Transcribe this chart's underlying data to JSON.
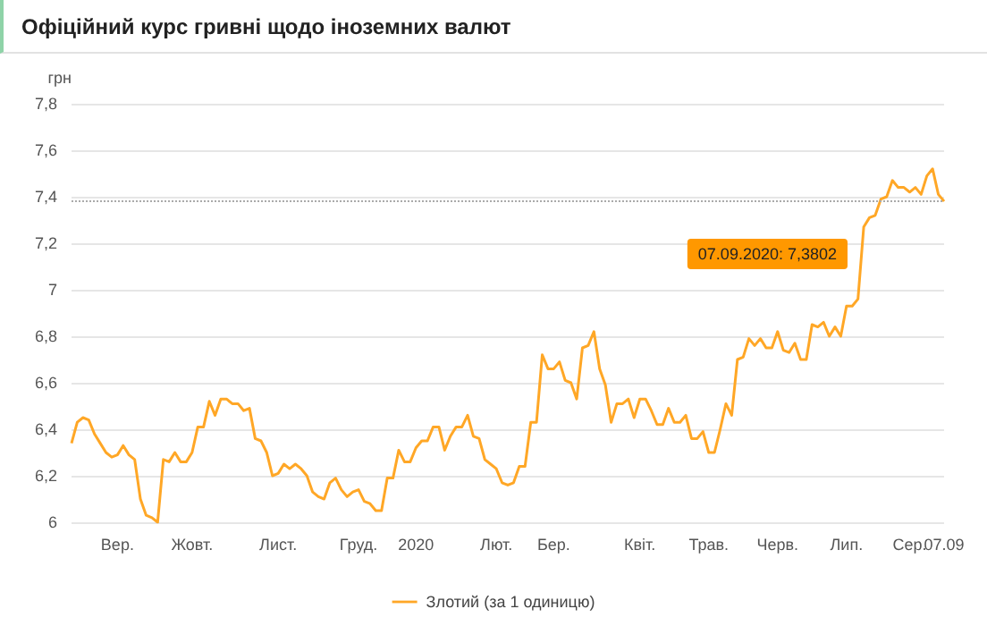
{
  "chart_data": {
    "type": "line",
    "title": "Офіційний курс гривні щодо іноземних валют",
    "ylabel": "грн",
    "categories": [
      null,
      null,
      null,
      null,
      null,
      null,
      null,
      null,
      "Вер.",
      null,
      null,
      null,
      null,
      null,
      null,
      null,
      null,
      null,
      null,
      null,
      null,
      "Жовт.",
      null,
      null,
      null,
      null,
      null,
      null,
      null,
      null,
      null,
      null,
      null,
      null,
      null,
      null,
      "Лист.",
      null,
      null,
      null,
      null,
      null,
      null,
      null,
      null,
      null,
      null,
      null,
      null,
      null,
      "Груд.",
      null,
      null,
      null,
      null,
      null,
      null,
      null,
      null,
      null,
      "2020",
      null,
      null,
      null,
      null,
      null,
      null,
      null,
      null,
      null,
      null,
      null,
      null,
      null,
      "Лют.",
      null,
      null,
      null,
      null,
      null,
      null,
      null,
      null,
      null,
      "Бер.",
      null,
      null,
      null,
      null,
      null,
      null,
      null,
      null,
      null,
      null,
      null,
      null,
      null,
      null,
      "Квіт.",
      null,
      null,
      null,
      null,
      null,
      null,
      null,
      null,
      null,
      null,
      null,
      "Трав.",
      null,
      null,
      null,
      null,
      null,
      null,
      null,
      null,
      null,
      null,
      null,
      "Черв.",
      null,
      null,
      null,
      null,
      null,
      null,
      null,
      null,
      null,
      null,
      null,
      "Лип.",
      null,
      null,
      null,
      null,
      null,
      null,
      null,
      null,
      null,
      null,
      "Сер.",
      null,
      null,
      null,
      null,
      null,
      "07.09"
    ],
    "ylim": [
      6,
      7.8
    ],
    "yticks": [
      {
        "value": 6,
        "label": "6"
      },
      {
        "value": 6.2,
        "label": "6,2"
      },
      {
        "value": 6.4,
        "label": "6,4"
      },
      {
        "value": 6.6,
        "label": "6,6"
      },
      {
        "value": 6.8,
        "label": "6,8"
      },
      {
        "value": 7,
        "label": "7"
      },
      {
        "value": 7.2,
        "label": "7,2"
      },
      {
        "value": 7.4,
        "label": "7,4"
      },
      {
        "value": 7.6,
        "label": "7,6"
      },
      {
        "value": 7.8,
        "label": "7,8"
      }
    ],
    "grid": "y",
    "legend": "bottom",
    "marker": "none",
    "line_style": "solid",
    "ref_lines": [
      {
        "axis": "y",
        "value": 7.3802,
        "label": null,
        "color": "#aaaaaa",
        "line_style": "dotted"
      }
    ],
    "annotations": [
      "07.09.2020: 7,3802"
    ],
    "series": [
      {
        "name": "Злотий (за 1 одиницю)",
        "color": "#ffa726",
        "values": [
          6.34,
          6.43,
          6.45,
          6.44,
          6.38,
          6.34,
          6.3,
          6.28,
          6.29,
          6.33,
          6.29,
          6.27,
          6.1,
          6.03,
          6.02,
          6.0,
          6.27,
          6.26,
          6.3,
          6.26,
          6.26,
          6.3,
          6.41,
          6.41,
          6.52,
          6.46,
          6.53,
          6.53,
          6.51,
          6.51,
          6.48,
          6.49,
          6.36,
          6.35,
          6.3,
          6.2,
          6.21,
          6.25,
          6.23,
          6.25,
          6.23,
          6.2,
          6.13,
          6.11,
          6.1,
          6.17,
          6.19,
          6.14,
          6.11,
          6.13,
          6.14,
          6.09,
          6.08,
          6.05,
          6.05,
          6.19,
          6.19,
          6.31,
          6.26,
          6.26,
          6.32,
          6.35,
          6.35,
          6.41,
          6.41,
          6.31,
          6.37,
          6.41,
          6.41,
          6.46,
          6.37,
          6.36,
          6.27,
          6.25,
          6.23,
          6.17,
          6.16,
          6.17,
          6.24,
          6.24,
          6.43,
          6.43,
          6.72,
          6.66,
          6.66,
          6.69,
          6.61,
          6.6,
          6.53,
          6.75,
          6.76,
          6.82,
          6.66,
          6.59,
          6.43,
          6.51,
          6.51,
          6.53,
          6.45,
          6.53,
          6.53,
          6.48,
          6.42,
          6.42,
          6.49,
          6.43,
          6.43,
          6.46,
          6.36,
          6.36,
          6.39,
          6.3,
          6.3,
          6.4,
          6.51,
          6.46,
          6.7,
          6.71,
          6.79,
          6.76,
          6.79,
          6.75,
          6.75,
          6.82,
          6.74,
          6.73,
          6.77,
          6.7,
          6.7,
          6.85,
          6.84,
          6.86,
          6.8,
          6.84,
          6.8,
          6.93,
          6.93,
          6.96,
          7.27,
          7.31,
          7.32,
          7.39,
          7.4,
          7.47,
          7.44,
          7.44,
          7.42,
          7.44,
          7.41,
          7.49,
          7.52,
          7.41,
          7.3802
        ]
      }
    ]
  }
}
